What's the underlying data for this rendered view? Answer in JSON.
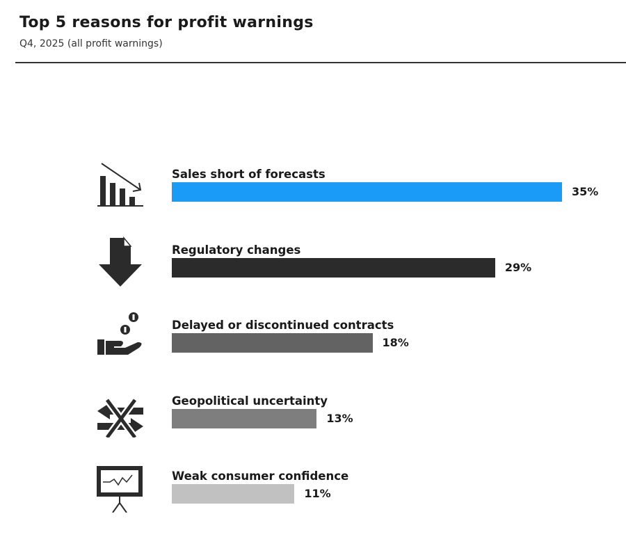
{
  "chart_data": {
    "type": "bar",
    "orientation": "horizontal",
    "title": "Top 5 reasons for profit warnings",
    "subtitle": "Q4, 2025 (all profit warnings)",
    "categories": [
      "Sales short of forecasts",
      "Regulatory changes",
      "Delayed or discontinued contracts",
      "Geopolitical uncertainty",
      "Weak consumer confidence"
    ],
    "values": [
      35,
      29,
      18,
      13,
      11
    ],
    "value_labels": [
      "35%",
      "29%",
      "18%",
      "13%",
      "11%"
    ],
    "icons": [
      "declining-bar-chart-icon",
      "down-arrow-document-icon",
      "hand-with-coins-icon",
      "crossed-arrows-icon",
      "presentation-board-icon"
    ],
    "colors": [
      "#1a9bf8",
      "#2b2b2b",
      "#636363",
      "#7e7e7e",
      "#c1c1c1"
    ],
    "unit": "%",
    "xlim": [
      0,
      35
    ],
    "xlabel": "",
    "ylabel": "",
    "grid": false,
    "legend": "none"
  }
}
